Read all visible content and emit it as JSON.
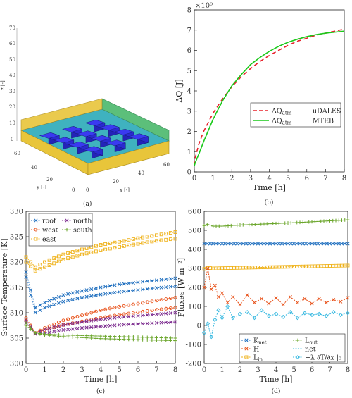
{
  "panel_a": {
    "caption": "(a)",
    "z_label": "z [-]",
    "y_label": "y [-]",
    "x_label": "x [-]",
    "z_ticks": [
      "70",
      "60",
      "50",
      "40",
      "30",
      "20",
      "10",
      "0"
    ],
    "y_ticks": [
      "60",
      "40",
      "20",
      "0"
    ],
    "x_ticks": [
      "0",
      "20",
      "40",
      "60"
    ],
    "colors": {
      "ground": "#3fb2bf",
      "wall_x": "#e8c53a",
      "wall_y": "#5cbf7a",
      "building_top": "#3a3af0",
      "building_side": "#2323b8"
    }
  },
  "chart_data": [
    {
      "panel": "b",
      "type": "line",
      "caption": "(b)",
      "xlabel": "Time [h]",
      "ylabel": "ΔQ [J]",
      "exponent": "×10⁹",
      "xlim": [
        0,
        8
      ],
      "ylim": [
        0,
        8
      ],
      "x_ticks": [
        0,
        1,
        2,
        3,
        4,
        5,
        6,
        7,
        8
      ],
      "y_ticks": [
        0,
        1,
        2,
        3,
        4,
        5,
        6,
        7,
        8
      ],
      "legend_position": "center-right",
      "series": [
        {
          "name": "ΔQ_atm  uDALES",
          "color": "#e8202a",
          "dash": "dashed",
          "x": [
            0,
            0.05,
            0.25,
            0.5,
            1,
            1.5,
            2,
            2.5,
            3,
            3.5,
            4,
            4.5,
            5,
            5.5,
            6,
            6.5,
            7,
            7.5,
            8
          ],
          "y": [
            0.3,
            0.7,
            1.4,
            2.0,
            2.9,
            3.6,
            4.2,
            4.7,
            5.1,
            5.45,
            5.75,
            6.0,
            6.25,
            6.45,
            6.6,
            6.75,
            6.85,
            6.95,
            7.05
          ]
        },
        {
          "name": "ΔQ_atm  MTEB",
          "color": "#19c919",
          "dash": "solid",
          "x": [
            0,
            0.05,
            0.25,
            0.5,
            1,
            1.5,
            2,
            2.5,
            3,
            3.5,
            4,
            4.5,
            5,
            5.5,
            6,
            6.5,
            7,
            7.5,
            8
          ],
          "y": [
            0.3,
            0.45,
            0.9,
            1.5,
            2.6,
            3.5,
            4.25,
            4.8,
            5.3,
            5.65,
            5.95,
            6.2,
            6.4,
            6.55,
            6.68,
            6.78,
            6.85,
            6.9,
            6.95
          ]
        }
      ]
    },
    {
      "panel": "c",
      "type": "line",
      "caption": "(c)",
      "xlabel": "Time [h]",
      "ylabel": "Surface Temperature [K]",
      "xlim": [
        0,
        8
      ],
      "ylim": [
        300,
        330
      ],
      "x_ticks": [
        0,
        1,
        2,
        3,
        4,
        5,
        6,
        7,
        8
      ],
      "y_ticks": [
        300,
        305,
        310,
        315,
        320,
        325,
        330
      ],
      "legend_position": "top-left",
      "series": [
        {
          "name": "roof",
          "color": "#1f6fbf",
          "x": [
            0,
            0.5,
            1,
            2,
            3,
            4,
            5,
            6,
            7,
            8
          ],
          "y": [
            318,
            311,
            312,
            313.5,
            314.3,
            315,
            315.6,
            316,
            316.4,
            316.8
          ]
        },
        {
          "name": "roof",
          "color": "#1f6fbf",
          "x": [
            0,
            0.5,
            1,
            2,
            3,
            4,
            5,
            6,
            7,
            8
          ],
          "y": [
            317,
            310,
            311,
            312.2,
            313,
            313.6,
            314.1,
            314.5,
            314.9,
            315.2
          ]
        },
        {
          "name": "west",
          "color": "#e8521a",
          "x": [
            0,
            0.5,
            1,
            2,
            3,
            4,
            5,
            6,
            7,
            8
          ],
          "y": [
            309,
            306,
            307,
            308.5,
            309.5,
            310.5,
            311.2,
            311.8,
            312.4,
            313
          ]
        },
        {
          "name": "west",
          "color": "#e8521a",
          "x": [
            0,
            0.5,
            1,
            2,
            3,
            4,
            5,
            6,
            7,
            8
          ],
          "y": [
            308.5,
            306,
            306.6,
            307.6,
            308.3,
            309,
            309.6,
            310.1,
            310.6,
            311
          ]
        },
        {
          "name": "east",
          "color": "#efb21a",
          "x": [
            0,
            0.5,
            1,
            2,
            3,
            4,
            5,
            6,
            7,
            8
          ],
          "y": [
            321,
            319,
            320,
            321.5,
            322.5,
            323.4,
            324,
            324.7,
            325.3,
            325.9
          ]
        },
        {
          "name": "east",
          "color": "#efb21a",
          "x": [
            0,
            0.5,
            1,
            2,
            3,
            4,
            5,
            6,
            7,
            8
          ],
          "y": [
            320,
            318.3,
            319,
            320.5,
            321.5,
            322.3,
            323,
            323.6,
            324.2,
            324.6
          ]
        },
        {
          "name": "north",
          "color": "#7b2a8e",
          "x": [
            0,
            0.5,
            1,
            2,
            3,
            4,
            5,
            6,
            7,
            8
          ],
          "y": [
            308.5,
            306,
            306.7,
            307.6,
            308.2,
            308.7,
            309.1,
            309.4,
            309.7,
            310
          ]
        },
        {
          "name": "north",
          "color": "#7b2a8e",
          "x": [
            0,
            0.5,
            1,
            2,
            3,
            4,
            5,
            6,
            7,
            8
          ],
          "y": [
            308,
            305.8,
            306,
            306.6,
            307,
            307.3,
            307.6,
            307.8,
            308,
            308.2
          ]
        },
        {
          "name": "south",
          "color": "#6aa52a",
          "x": [
            0,
            0.5,
            1,
            2,
            3,
            4,
            5,
            6,
            7,
            8
          ],
          "y": [
            308,
            306,
            305.8,
            305.6,
            305.5,
            305.4,
            305.3,
            305.2,
            305.1,
            305
          ]
        },
        {
          "name": "south",
          "color": "#6aa52a",
          "x": [
            0,
            0.5,
            1,
            2,
            3,
            4,
            5,
            6,
            7,
            8
          ],
          "y": [
            307.5,
            306,
            305.6,
            305.3,
            305.1,
            304.9,
            304.8,
            304.7,
            304.6,
            304.5
          ]
        }
      ],
      "legend": [
        {
          "label": "roof",
          "color": "#1f6fbf"
        },
        {
          "label": "north",
          "color": "#7b2a8e"
        },
        {
          "label": "west",
          "color": "#e8521a"
        },
        {
          "label": "south",
          "color": "#6aa52a"
        },
        {
          "label": "east",
          "color": "#efb21a"
        }
      ]
    },
    {
      "panel": "d",
      "type": "line",
      "caption": "(d)",
      "xlabel": "Time [h]",
      "ylabel": "Fluxes [W m⁻²]",
      "xlim": [
        0,
        8
      ],
      "ylim": [
        -200,
        600
      ],
      "x_ticks": [
        0,
        1,
        2,
        3,
        4,
        5,
        6,
        7,
        8
      ],
      "y_ticks": [
        -200,
        -100,
        0,
        100,
        200,
        300,
        400,
        500,
        600
      ],
      "legend_position": "bottom",
      "series": [
        {
          "name": "K_net",
          "color": "#1f6fbf",
          "x": [
            0,
            1,
            2,
            3,
            4,
            5,
            6,
            7,
            8
          ],
          "y": [
            430,
            430,
            430,
            430,
            430,
            430,
            430,
            430,
            430
          ]
        },
        {
          "name": "L_out",
          "color": "#6aa52a",
          "x": [
            0,
            0.2,
            0.5,
            1,
            2,
            3,
            4,
            5,
            6,
            7,
            8
          ],
          "y": [
            525,
            532,
            522,
            522,
            528,
            532,
            536,
            540,
            545,
            550,
            555
          ]
        },
        {
          "name": "L_in",
          "color": "#efb21a",
          "x": [
            0,
            0.2,
            0.5,
            1,
            2,
            3,
            4,
            5,
            6,
            7,
            8
          ],
          "y": [
            297,
            303,
            300,
            301,
            303,
            305,
            307,
            309,
            311,
            313,
            315
          ]
        },
        {
          "name": "H",
          "color": "#e8521a",
          "x": [
            0,
            0.2,
            0.4,
            0.6,
            0.8,
            1,
            1.3,
            1.6,
            2,
            2.4,
            2.8,
            3.2,
            3.6,
            4,
            4.4,
            4.8,
            5.2,
            5.6,
            6,
            6.4,
            6.8,
            7.2,
            7.6,
            8
          ],
          "y": [
            200,
            300,
            190,
            210,
            150,
            170,
            120,
            150,
            110,
            160,
            120,
            140,
            115,
            145,
            110,
            150,
            120,
            140,
            115,
            140,
            120,
            135,
            125,
            145
          ]
        },
        {
          "name": "net",
          "color": "#35b8e0",
          "x": [
            0,
            0.2,
            0.4,
            0.6,
            0.8,
            1,
            1.3,
            1.6,
            2,
            2.4,
            2.8,
            3.2,
            3.6,
            4,
            4.4,
            4.8,
            5.2,
            5.6,
            6,
            6.4,
            6.8,
            7.2,
            7.6,
            8
          ],
          "y": [
            -40,
            10,
            -60,
            30,
            80,
            40,
            100,
            40,
            60,
            70,
            40,
            80,
            50,
            60,
            45,
            70,
            40,
            65,
            55,
            60,
            50,
            70,
            55,
            65
          ]
        }
      ],
      "legend": [
        {
          "label": "K",
          "sub": "net",
          "color": "#1f6fbf"
        },
        {
          "label": "L",
          "sub": "out",
          "color": "#6aa52a"
        },
        {
          "label": "H",
          "sub": "",
          "color": "#e8521a"
        },
        {
          "label": "net",
          "sub": "",
          "color": "#35b8e0"
        },
        {
          "label": "L",
          "sub": "in",
          "color": "#efb21a"
        },
        {
          "label": "−λ ∂T/∂x |₀",
          "sub": "",
          "color": "#35b8e0"
        }
      ]
    }
  ]
}
